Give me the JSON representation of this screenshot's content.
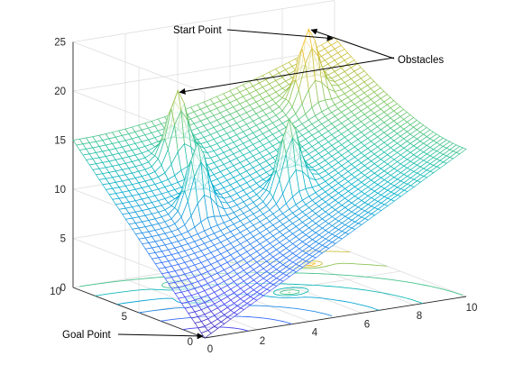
{
  "chart_data": {
    "type": "surface",
    "x_axis": {
      "ticks": [
        "0",
        "2",
        "4",
        "6",
        "8",
        "10"
      ],
      "range": [
        0,
        10
      ]
    },
    "y_axis": {
      "ticks": [
        "0",
        "5",
        "10"
      ],
      "range": [
        0,
        10
      ]
    },
    "z_axis": {
      "ticks": [
        "0",
        "5",
        "10",
        "15",
        "20",
        "25"
      ],
      "range": [
        0,
        25
      ]
    },
    "grid": true,
    "colormap": "parula",
    "contour_on_floor": true,
    "surface_grid": {
      "x": [
        0,
        10
      ],
      "y": [
        0,
        10
      ],
      "resolution": 0.25
    },
    "potential": {
      "attractive_scale": 1.5,
      "obstacle_height": 7,
      "obstacle_width": 0.35
    },
    "start_point": {
      "x": 10,
      "y": 10,
      "z": 21.2
    },
    "goal_point": {
      "x": 0,
      "y": 0,
      "z": 0
    },
    "obstacles": [
      {
        "x": 3.0,
        "y": 8.0
      },
      {
        "x": 8.0,
        "y": 8.0
      },
      {
        "x": 2.5,
        "y": 5.5
      },
      {
        "x": 5.5,
        "y": 4.5
      }
    ],
    "annotations": {
      "start": "Start Point",
      "obstacles": "Obstacles",
      "goal": "Goal Point"
    },
    "colors": {
      "parula": [
        "#3e26a8",
        "#4745f8",
        "#2f72fb",
        "#1f97e1",
        "#06b1cd",
        "#28c2a5",
        "#76c866",
        "#c3c03c",
        "#f3c33a",
        "#f9e925"
      ],
      "grid": "#dedede",
      "axis": "#262626"
    }
  }
}
